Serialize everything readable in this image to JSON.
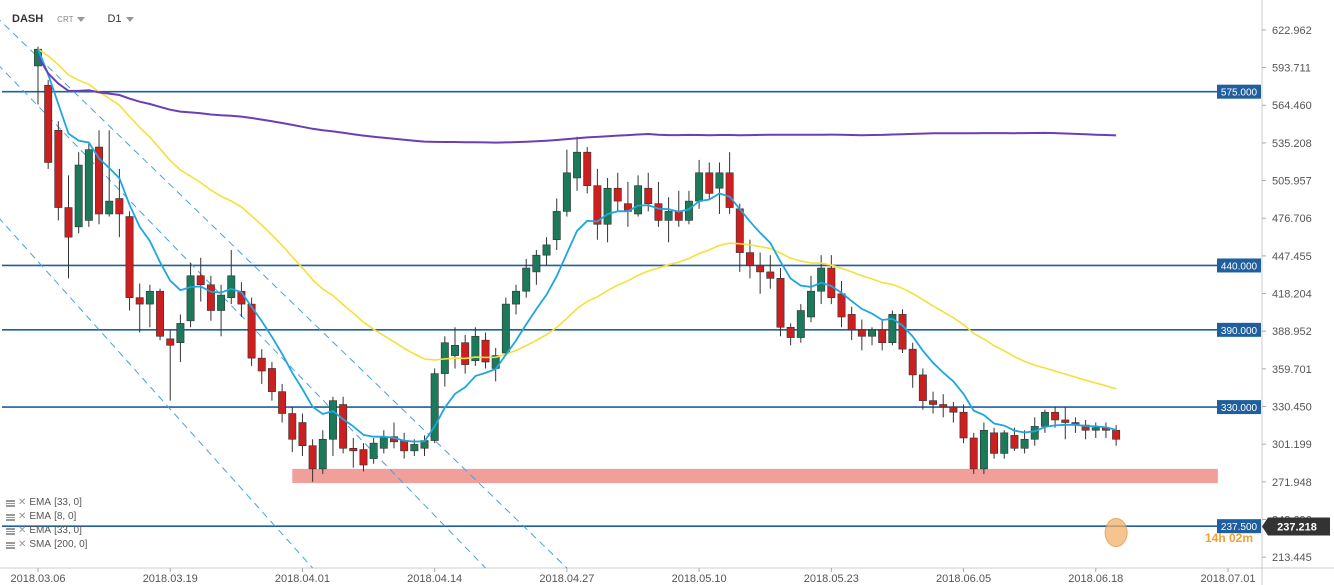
{
  "header": {
    "symbol": "DASH",
    "type_label": "CRT",
    "timeframe": "D1"
  },
  "indicators": [
    {
      "name": "EMA",
      "params": "[33, 0]"
    },
    {
      "name": "EMA",
      "params": "[8, 0]"
    },
    {
      "name": "EMA",
      "params": "[33, 0]"
    },
    {
      "name": "SMA",
      "params": "[200, 0]"
    }
  ],
  "countdown": "14h 02m",
  "colors": {
    "bull": "#1a7a5a",
    "bear": "#cc1f1f",
    "ema_short": "#1ea6e0",
    "ema_long": "#f5e03a",
    "sma": "#6a3fb5",
    "level": "#1f5f9f",
    "zone": "#ef8e8a",
    "current_price_bg": "#333333",
    "level_label_bg": "#1f5f9f"
  },
  "chart_data": {
    "type": "candlestick",
    "y_ticks": [
      "622.962",
      "593.711",
      "564.460",
      "535.208",
      "505.957",
      "476.706",
      "447.455",
      "418.204",
      "388.952",
      "359.701",
      "330.450",
      "301.199",
      "271.948",
      "242.696",
      "213.445"
    ],
    "y_range": [
      205,
      640
    ],
    "x_ticks": [
      {
        "date": "2018-03-06",
        "label": "2018.03.06"
      },
      {
        "date": "2018-03-19",
        "label": "2018.03.19"
      },
      {
        "date": "2018-04-01",
        "label": "2018.04.01"
      },
      {
        "date": "2018-04-14",
        "label": "2018.04.14"
      },
      {
        "date": "2018-04-27",
        "label": "2018.04.27"
      },
      {
        "date": "2018-05-10",
        "label": "2018.05.10"
      },
      {
        "date": "2018-05-23",
        "label": "2018.05.23"
      },
      {
        "date": "2018-06-05",
        "label": "2018.06.05"
      },
      {
        "date": "2018-06-18",
        "label": "2018.06.18"
      },
      {
        "date": "2018-07-01",
        "label": "2018.07.01"
      }
    ],
    "horizontal_levels": [
      {
        "value": 575.0,
        "label": "575.000"
      },
      {
        "value": 440.0,
        "label": "440.000"
      },
      {
        "value": 390.0,
        "label": "390.000"
      },
      {
        "value": 330.0,
        "label": "330.000"
      },
      {
        "value": 237.5,
        "label": "237.500"
      }
    ],
    "support_zone": {
      "from_date": "2018-03-31",
      "to_date": "2018-06-30",
      "low": 271,
      "high": 282
    },
    "current_price": {
      "value": 237.218,
      "label": "237.218"
    },
    "channel_lines": [
      {
        "from": {
          "date": "2018-02-21",
          "value": 670
        },
        "to": {
          "date": "2018-04-19",
          "value": 205
        }
      },
      {
        "from": {
          "date": "2018-03-01",
          "value": 640
        },
        "to": {
          "date": "2018-04-27",
          "value": 205
        }
      },
      {
        "from": {
          "date": "2018-02-23",
          "value": 540
        },
        "to": {
          "date": "2018-04-02",
          "value": 205
        }
      }
    ],
    "candles": [
      {
        "date": "2018-03-06",
        "o": 595,
        "h": 610,
        "l": 565,
        "c": 608
      },
      {
        "date": "2018-03-07",
        "o": 580,
        "h": 584,
        "l": 515,
        "c": 520
      },
      {
        "date": "2018-03-08",
        "o": 545,
        "h": 552,
        "l": 475,
        "c": 485
      },
      {
        "date": "2018-03-09",
        "o": 485,
        "h": 510,
        "l": 430,
        "c": 462
      },
      {
        "date": "2018-03-10",
        "o": 470,
        "h": 528,
        "l": 465,
        "c": 518
      },
      {
        "date": "2018-03-11",
        "o": 475,
        "h": 535,
        "l": 470,
        "c": 530
      },
      {
        "date": "2018-03-12",
        "o": 532,
        "h": 545,
        "l": 472,
        "c": 480
      },
      {
        "date": "2018-03-13",
        "o": 480,
        "h": 545,
        "l": 478,
        "c": 490
      },
      {
        "date": "2018-03-14",
        "o": 492,
        "h": 515,
        "l": 462,
        "c": 480
      },
      {
        "date": "2018-03-15",
        "o": 478,
        "h": 482,
        "l": 405,
        "c": 415
      },
      {
        "date": "2018-03-16",
        "o": 415,
        "h": 426,
        "l": 388,
        "c": 410
      },
      {
        "date": "2018-03-17",
        "o": 410,
        "h": 425,
        "l": 392,
        "c": 420
      },
      {
        "date": "2018-03-18",
        "o": 420,
        "h": 422,
        "l": 382,
        "c": 385
      },
      {
        "date": "2018-03-19",
        "o": 383,
        "h": 390,
        "l": 335,
        "c": 378
      },
      {
        "date": "2018-03-20",
        "o": 380,
        "h": 402,
        "l": 365,
        "c": 395
      },
      {
        "date": "2018-03-21",
        "o": 397,
        "h": 442,
        "l": 392,
        "c": 432
      },
      {
        "date": "2018-03-22",
        "o": 432,
        "h": 446,
        "l": 412,
        "c": 425
      },
      {
        "date": "2018-03-23",
        "o": 425,
        "h": 432,
        "l": 397,
        "c": 405
      },
      {
        "date": "2018-03-24",
        "o": 405,
        "h": 425,
        "l": 385,
        "c": 417
      },
      {
        "date": "2018-03-25",
        "o": 415,
        "h": 452,
        "l": 410,
        "c": 432
      },
      {
        "date": "2018-03-26",
        "o": 420,
        "h": 427,
        "l": 400,
        "c": 410
      },
      {
        "date": "2018-03-27",
        "o": 410,
        "h": 415,
        "l": 362,
        "c": 368
      },
      {
        "date": "2018-03-28",
        "o": 368,
        "h": 375,
        "l": 348,
        "c": 358
      },
      {
        "date": "2018-03-29",
        "o": 360,
        "h": 365,
        "l": 335,
        "c": 342
      },
      {
        "date": "2018-03-30",
        "o": 342,
        "h": 348,
        "l": 318,
        "c": 325
      },
      {
        "date": "2018-03-31",
        "o": 325,
        "h": 330,
        "l": 295,
        "c": 305
      },
      {
        "date": "2018-04-01",
        "o": 318,
        "h": 325,
        "l": 292,
        "c": 300
      },
      {
        "date": "2018-04-02",
        "o": 300,
        "h": 305,
        "l": 272,
        "c": 282
      },
      {
        "date": "2018-04-03",
        "o": 282,
        "h": 312,
        "l": 278,
        "c": 305
      },
      {
        "date": "2018-04-04",
        "o": 305,
        "h": 338,
        "l": 292,
        "c": 335
      },
      {
        "date": "2018-04-05",
        "o": 332,
        "h": 338,
        "l": 294,
        "c": 298
      },
      {
        "date": "2018-04-06",
        "o": 298,
        "h": 306,
        "l": 283,
        "c": 296
      },
      {
        "date": "2018-04-07",
        "o": 297,
        "h": 302,
        "l": 280,
        "c": 285
      },
      {
        "date": "2018-04-08",
        "o": 290,
        "h": 306,
        "l": 286,
        "c": 302
      },
      {
        "date": "2018-04-09",
        "o": 298,
        "h": 312,
        "l": 294,
        "c": 307
      },
      {
        "date": "2018-04-10",
        "o": 307,
        "h": 318,
        "l": 298,
        "c": 303
      },
      {
        "date": "2018-04-11",
        "o": 304,
        "h": 310,
        "l": 290,
        "c": 296
      },
      {
        "date": "2018-04-12",
        "o": 296,
        "h": 305,
        "l": 292,
        "c": 301
      },
      {
        "date": "2018-04-13",
        "o": 298,
        "h": 308,
        "l": 292,
        "c": 304
      },
      {
        "date": "2018-04-14",
        "o": 304,
        "h": 360,
        "l": 302,
        "c": 356
      },
      {
        "date": "2018-04-15",
        "o": 356,
        "h": 385,
        "l": 346,
        "c": 380
      },
      {
        "date": "2018-04-16",
        "o": 370,
        "h": 392,
        "l": 360,
        "c": 378
      },
      {
        "date": "2018-04-17",
        "o": 380,
        "h": 386,
        "l": 356,
        "c": 363
      },
      {
        "date": "2018-04-18",
        "o": 366,
        "h": 392,
        "l": 362,
        "c": 385
      },
      {
        "date": "2018-04-19",
        "o": 382,
        "h": 388,
        "l": 360,
        "c": 365
      },
      {
        "date": "2018-04-20",
        "o": 360,
        "h": 376,
        "l": 350,
        "c": 370
      },
      {
        "date": "2018-04-21",
        "o": 372,
        "h": 415,
        "l": 370,
        "c": 410
      },
      {
        "date": "2018-04-22",
        "o": 410,
        "h": 425,
        "l": 402,
        "c": 420
      },
      {
        "date": "2018-04-23",
        "o": 420,
        "h": 445,
        "l": 415,
        "c": 438
      },
      {
        "date": "2018-04-24",
        "o": 435,
        "h": 452,
        "l": 425,
        "c": 448
      },
      {
        "date": "2018-04-25",
        "o": 448,
        "h": 462,
        "l": 440,
        "c": 456
      },
      {
        "date": "2018-04-26",
        "o": 460,
        "h": 492,
        "l": 452,
        "c": 482
      },
      {
        "date": "2018-04-27",
        "o": 482,
        "h": 530,
        "l": 478,
        "c": 512
      },
      {
        "date": "2018-04-28",
        "o": 508,
        "h": 540,
        "l": 498,
        "c": 528
      },
      {
        "date": "2018-04-29",
        "o": 528,
        "h": 532,
        "l": 496,
        "c": 502
      },
      {
        "date": "2018-04-30",
        "o": 502,
        "h": 515,
        "l": 460,
        "c": 472
      },
      {
        "date": "2018-05-01",
        "o": 472,
        "h": 508,
        "l": 458,
        "c": 500
      },
      {
        "date": "2018-05-02",
        "o": 500,
        "h": 512,
        "l": 482,
        "c": 490
      },
      {
        "date": "2018-05-03",
        "o": 488,
        "h": 505,
        "l": 470,
        "c": 482
      },
      {
        "date": "2018-05-04",
        "o": 480,
        "h": 510,
        "l": 478,
        "c": 502
      },
      {
        "date": "2018-05-05",
        "o": 500,
        "h": 512,
        "l": 482,
        "c": 488
      },
      {
        "date": "2018-05-06",
        "o": 488,
        "h": 505,
        "l": 470,
        "c": 475
      },
      {
        "date": "2018-05-07",
        "o": 475,
        "h": 493,
        "l": 458,
        "c": 482
      },
      {
        "date": "2018-05-08",
        "o": 482,
        "h": 498,
        "l": 470,
        "c": 475
      },
      {
        "date": "2018-05-09",
        "o": 475,
        "h": 498,
        "l": 472,
        "c": 490
      },
      {
        "date": "2018-05-10",
        "o": 490,
        "h": 522,
        "l": 484,
        "c": 512
      },
      {
        "date": "2018-05-11",
        "o": 512,
        "h": 520,
        "l": 492,
        "c": 496
      },
      {
        "date": "2018-05-12",
        "o": 500,
        "h": 520,
        "l": 480,
        "c": 512
      },
      {
        "date": "2018-05-13",
        "o": 512,
        "h": 528,
        "l": 480,
        "c": 485
      },
      {
        "date": "2018-05-14",
        "o": 484,
        "h": 488,
        "l": 435,
        "c": 450
      },
      {
        "date": "2018-05-15",
        "o": 450,
        "h": 460,
        "l": 430,
        "c": 440
      },
      {
        "date": "2018-05-16",
        "o": 440,
        "h": 450,
        "l": 418,
        "c": 435
      },
      {
        "date": "2018-05-17",
        "o": 435,
        "h": 448,
        "l": 422,
        "c": 430
      },
      {
        "date": "2018-05-18",
        "o": 430,
        "h": 438,
        "l": 385,
        "c": 392
      },
      {
        "date": "2018-05-19",
        "o": 392,
        "h": 395,
        "l": 378,
        "c": 384
      },
      {
        "date": "2018-05-20",
        "o": 384,
        "h": 410,
        "l": 380,
        "c": 405
      },
      {
        "date": "2018-05-21",
        "o": 400,
        "h": 432,
        "l": 396,
        "c": 420
      },
      {
        "date": "2018-05-22",
        "o": 420,
        "h": 448,
        "l": 410,
        "c": 438
      },
      {
        "date": "2018-05-23",
        "o": 438,
        "h": 448,
        "l": 410,
        "c": 415
      },
      {
        "date": "2018-05-24",
        "o": 418,
        "h": 428,
        "l": 392,
        "c": 400
      },
      {
        "date": "2018-05-25",
        "o": 402,
        "h": 408,
        "l": 382,
        "c": 390
      },
      {
        "date": "2018-05-26",
        "o": 390,
        "h": 398,
        "l": 374,
        "c": 385
      },
      {
        "date": "2018-05-27",
        "o": 385,
        "h": 392,
        "l": 378,
        "c": 390
      },
      {
        "date": "2018-05-28",
        "o": 390,
        "h": 398,
        "l": 374,
        "c": 380
      },
      {
        "date": "2018-05-29",
        "o": 380,
        "h": 405,
        "l": 378,
        "c": 402
      },
      {
        "date": "2018-05-30",
        "o": 402,
        "h": 406,
        "l": 372,
        "c": 375
      },
      {
        "date": "2018-05-31",
        "o": 375,
        "h": 380,
        "l": 345,
        "c": 355
      },
      {
        "date": "2018-06-01",
        "o": 355,
        "h": 360,
        "l": 328,
        "c": 335
      },
      {
        "date": "2018-06-02",
        "o": 335,
        "h": 342,
        "l": 325,
        "c": 332
      },
      {
        "date": "2018-06-03",
        "o": 332,
        "h": 340,
        "l": 322,
        "c": 330
      },
      {
        "date": "2018-06-04",
        "o": 330,
        "h": 334,
        "l": 318,
        "c": 326
      },
      {
        "date": "2018-06-05",
        "o": 326,
        "h": 332,
        "l": 302,
        "c": 306
      },
      {
        "date": "2018-06-06",
        "o": 306,
        "h": 310,
        "l": 278,
        "c": 282
      },
      {
        "date": "2018-06-07",
        "o": 282,
        "h": 318,
        "l": 278,
        "c": 312
      },
      {
        "date": "2018-06-08",
        "o": 310,
        "h": 314,
        "l": 290,
        "c": 294
      },
      {
        "date": "2018-06-09",
        "o": 294,
        "h": 312,
        "l": 290,
        "c": 310
      },
      {
        "date": "2018-06-10",
        "o": 308,
        "h": 314,
        "l": 296,
        "c": 298
      },
      {
        "date": "2018-06-11",
        "o": 298,
        "h": 312,
        "l": 294,
        "c": 305
      },
      {
        "date": "2018-06-12",
        "o": 305,
        "h": 322,
        "l": 300,
        "c": 315
      },
      {
        "date": "2018-06-13",
        "o": 315,
        "h": 328,
        "l": 310,
        "c": 326
      },
      {
        "date": "2018-06-14",
        "o": 326,
        "h": 330,
        "l": 314,
        "c": 320
      },
      {
        "date": "2018-06-15",
        "o": 320,
        "h": 330,
        "l": 305,
        "c": 318
      },
      {
        "date": "2018-06-16",
        "o": 318,
        "h": 322,
        "l": 310,
        "c": 316
      },
      {
        "date": "2018-06-17",
        "o": 316,
        "h": 320,
        "l": 305,
        "c": 312
      },
      {
        "date": "2018-06-18",
        "o": 312,
        "h": 318,
        "l": 306,
        "c": 314
      },
      {
        "date": "2018-06-19",
        "o": 314,
        "h": 318,
        "l": 306,
        "c": 312
      },
      {
        "date": "2018-06-20",
        "o": 312,
        "h": 316,
        "l": 300,
        "c": 305
      }
    ]
  }
}
